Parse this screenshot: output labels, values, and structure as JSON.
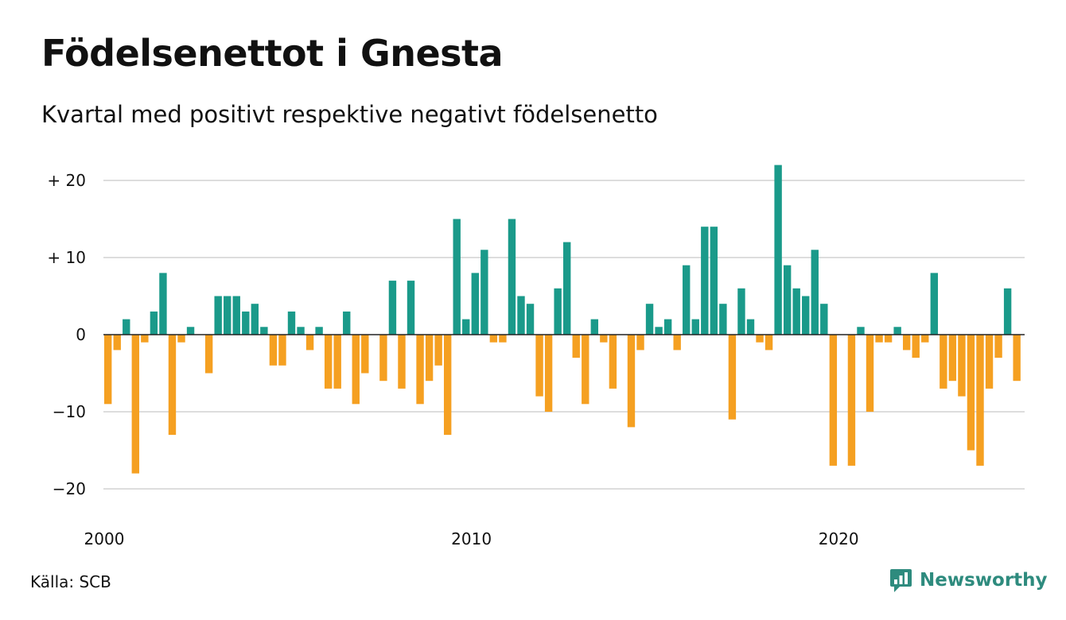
{
  "title": "Födelsenettot i Gnesta",
  "subtitle": "Kvartal med positivt respektive negativt födelsenetto",
  "source": "Källa: SCB",
  "brand": {
    "name": "Newsworthy",
    "icon": "newsworthy-logo-icon",
    "color": "#2e8b7e"
  },
  "colors": {
    "positive": "#1a9a8a",
    "negative": "#f5a021",
    "grid": "#dddddd",
    "zero_line": "#222222"
  },
  "chart_data": {
    "type": "bar",
    "title": "Födelsenettot i Gnesta",
    "subtitle": "Kvartal med positivt respektive negativt födelsenetto",
    "xlabel": "",
    "ylabel": "",
    "x_start": "2000 Q1",
    "frequency": "quarterly",
    "xticks": [
      2000,
      2010,
      2020
    ],
    "yticks": [
      20,
      10,
      0,
      -10,
      -20
    ],
    "ytick_labels": [
      "+ 20",
      "+ 10",
      "0",
      "−10",
      "−20"
    ],
    "ylim": [
      -22,
      22
    ],
    "grid": true,
    "legend": "none",
    "values": [
      -9,
      -2,
      2,
      -18,
      -1,
      3,
      8,
      -13,
      -1,
      1,
      0,
      -5,
      5,
      5,
      5,
      3,
      4,
      1,
      -4,
      -4,
      3,
      1,
      -2,
      1,
      -7,
      -7,
      3,
      -9,
      -5,
      0,
      -6,
      7,
      -7,
      7,
      -9,
      -6,
      -4,
      -13,
      15,
      2,
      8,
      11,
      -1,
      -1,
      15,
      5,
      4,
      -8,
      -10,
      6,
      12,
      -3,
      -9,
      2,
      -1,
      -7,
      0,
      -12,
      -2,
      4,
      1,
      2,
      -2,
      9,
      2,
      14,
      14,
      4,
      -11,
      6,
      2,
      -1,
      -2,
      22,
      9,
      6,
      5,
      11,
      4,
      -17,
      0,
      -17,
      1,
      -10,
      -1,
      -1,
      1,
      -2,
      -3,
      -1,
      8,
      -7,
      -6,
      -8,
      -15,
      -17,
      -7,
      -3,
      6,
      -6
    ]
  }
}
